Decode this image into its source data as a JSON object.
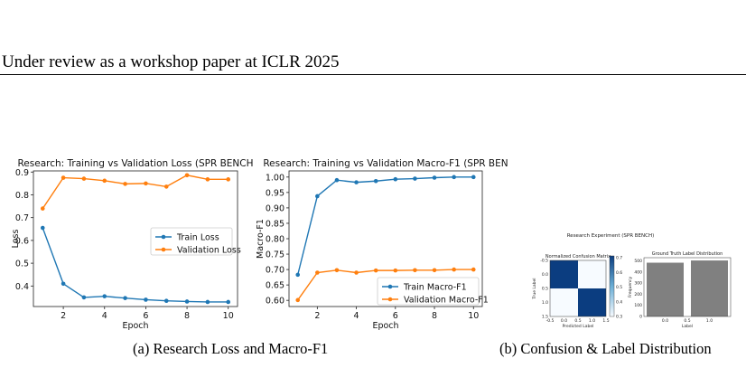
{
  "header": {
    "text": "Under review as a workshop paper at ICLR 2025"
  },
  "captions": {
    "a": "(a) Research Loss and Macro-F1",
    "b": "(b) Confusion & Label Distribution"
  },
  "chart_data": [
    {
      "type": "line",
      "title": "Research: Training vs Validation Loss (SPR BENCH",
      "xlabel": "Epoch",
      "ylabel": "Loss",
      "x": [
        1,
        2,
        3,
        4,
        5,
        6,
        7,
        8,
        9,
        10
      ],
      "xticks": [
        2,
        4,
        6,
        8,
        10
      ],
      "yticks": [
        0.4,
        0.5,
        0.6,
        0.7,
        0.8,
        0.9
      ],
      "xlim": [
        0.55,
        10.45
      ],
      "ylim": [
        0.31,
        0.905
      ],
      "legend": "center-right",
      "series": [
        {
          "name": "Train Loss",
          "color": "#1f77b4",
          "values": [
            0.655,
            0.41,
            0.35,
            0.355,
            0.347,
            0.34,
            0.335,
            0.332,
            0.33,
            0.33
          ]
        },
        {
          "name": "Validation Loss",
          "color": "#ff7f0e",
          "values": [
            0.74,
            0.875,
            0.871,
            0.862,
            0.848,
            0.85,
            0.836,
            0.886,
            0.868,
            0.868
          ]
        }
      ]
    },
    {
      "type": "line",
      "title": "Research: Training vs Validation Macro-F1 (SPR BEN",
      "xlabel": "Epoch",
      "ylabel": "Macro-F1",
      "x": [
        1,
        2,
        3,
        4,
        5,
        6,
        7,
        8,
        9,
        10
      ],
      "xticks": [
        2,
        4,
        6,
        8,
        10
      ],
      "yticks": [
        0.6,
        0.65,
        0.7,
        0.75,
        0.8,
        0.85,
        0.9,
        0.95,
        1.0
      ],
      "ytick_labels": [
        "0.60",
        "0.65",
        "0.70",
        "0.75",
        "0.80",
        "0.85",
        "0.90",
        "0.95",
        "1.00"
      ],
      "xlim": [
        0.55,
        10.45
      ],
      "ylim": [
        0.58,
        1.02
      ],
      "legend": "lower-right",
      "series": [
        {
          "name": "Train Macro-F1",
          "color": "#1f77b4",
          "values": [
            0.683,
            0.938,
            0.99,
            0.983,
            0.987,
            0.993,
            0.995,
            0.998,
            1.0,
            1.0
          ]
        },
        {
          "name": "Validation Macro-F1",
          "color": "#ff7f0e",
          "values": [
            0.601,
            0.69,
            0.698,
            0.69,
            0.697,
            0.697,
            0.698,
            0.698,
            0.7,
            0.7
          ]
        }
      ]
    },
    {
      "type": "heatmap",
      "suptitle": "Research Experiment (SPR BENCH)",
      "title": "Normalized Confusion Matrix",
      "xlabel": "Predicted Label",
      "ylabel": "True Label",
      "matrix": [
        [
          1.0,
          0.0
        ],
        [
          0.0,
          1.0
        ]
      ],
      "colors": {
        "high": "#0b3d80",
        "low": "#f7fbff"
      },
      "xticks": [
        "-0.5",
        "0.0",
        "0.5",
        "1.0",
        "1.5"
      ],
      "yticks": [
        "-0.5",
        "0.0",
        "0.5",
        "1.0",
        "1.5"
      ],
      "colorbar_ticks": [
        "0.7",
        "0.6",
        "0.5",
        "0.4",
        "0.3"
      ]
    },
    {
      "type": "bar",
      "title": "Ground Truth Label Distribution",
      "xlabel": "Label",
      "ylabel": "Frequency",
      "categories": [
        "0.0",
        "1.0"
      ],
      "xticks": [
        "0.0",
        "0.5",
        "1.0"
      ],
      "values": [
        485,
        505
      ],
      "yticks": [
        0,
        100,
        200,
        300,
        400,
        500
      ],
      "ylim": [
        0,
        530
      ],
      "color": "#808080"
    }
  ]
}
